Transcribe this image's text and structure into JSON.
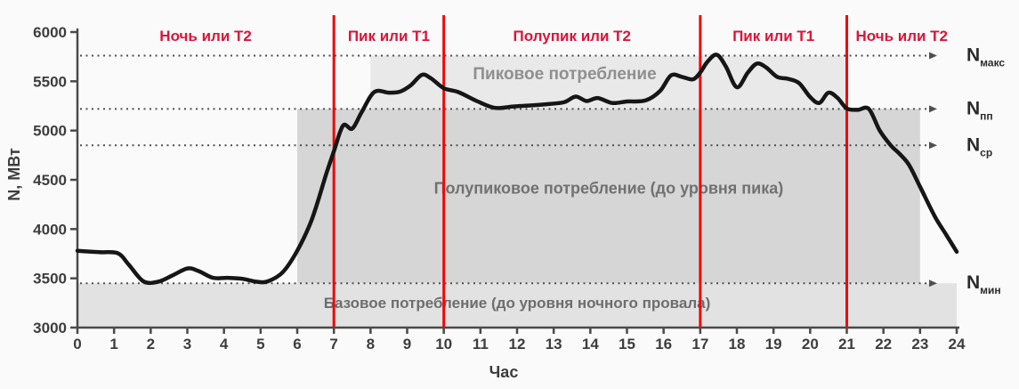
{
  "chart_data": {
    "type": "line",
    "title": "",
    "xlabel": "Час",
    "ylabel": "N, МВт",
    "xlim": [
      0,
      24
    ],
    "ylim": [
      3000,
      6000
    ],
    "x_ticks": [
      0,
      1,
      2,
      3,
      4,
      5,
      6,
      7,
      8,
      9,
      10,
      11,
      12,
      13,
      14,
      15,
      16,
      17,
      18,
      19,
      20,
      21,
      22,
      23,
      24
    ],
    "y_ticks": [
      3000,
      3500,
      4000,
      4500,
      5000,
      5500,
      6000
    ],
    "grid": false,
    "series": [
      {
        "name": "daily-load-curve",
        "points": [
          [
            0,
            3780
          ],
          [
            0.6,
            3765
          ],
          [
            1.1,
            3755
          ],
          [
            1.4,
            3640
          ],
          [
            1.8,
            3470
          ],
          [
            2.2,
            3465
          ],
          [
            2.6,
            3530
          ],
          [
            3.0,
            3600
          ],
          [
            3.3,
            3575
          ],
          [
            3.7,
            3505
          ],
          [
            4.1,
            3505
          ],
          [
            4.5,
            3495
          ],
          [
            4.9,
            3465
          ],
          [
            5.2,
            3470
          ],
          [
            5.6,
            3560
          ],
          [
            6.0,
            3780
          ],
          [
            6.4,
            4100
          ],
          [
            6.8,
            4570
          ],
          [
            7.0,
            4790
          ],
          [
            7.25,
            5050
          ],
          [
            7.5,
            5020
          ],
          [
            7.75,
            5180
          ],
          [
            8.1,
            5390
          ],
          [
            8.5,
            5385
          ],
          [
            8.8,
            5395
          ],
          [
            9.1,
            5460
          ],
          [
            9.4,
            5565
          ],
          [
            9.65,
            5530
          ],
          [
            10.0,
            5430
          ],
          [
            10.4,
            5390
          ],
          [
            10.9,
            5300
          ],
          [
            11.4,
            5230
          ],
          [
            11.9,
            5245
          ],
          [
            12.4,
            5255
          ],
          [
            12.9,
            5270
          ],
          [
            13.3,
            5290
          ],
          [
            13.6,
            5345
          ],
          [
            13.9,
            5300
          ],
          [
            14.2,
            5330
          ],
          [
            14.6,
            5280
          ],
          [
            15.0,
            5295
          ],
          [
            15.5,
            5305
          ],
          [
            15.9,
            5400
          ],
          [
            16.2,
            5560
          ],
          [
            16.5,
            5545
          ],
          [
            16.8,
            5520
          ],
          [
            17.0,
            5590
          ],
          [
            17.2,
            5700
          ],
          [
            17.45,
            5770
          ],
          [
            17.7,
            5650
          ],
          [
            18.0,
            5440
          ],
          [
            18.3,
            5590
          ],
          [
            18.55,
            5680
          ],
          [
            18.8,
            5640
          ],
          [
            19.1,
            5545
          ],
          [
            19.4,
            5525
          ],
          [
            19.7,
            5480
          ],
          [
            20.0,
            5340
          ],
          [
            20.25,
            5280
          ],
          [
            20.5,
            5385
          ],
          [
            20.75,
            5330
          ],
          [
            21.0,
            5225
          ],
          [
            21.3,
            5210
          ],
          [
            21.6,
            5220
          ],
          [
            21.9,
            5000
          ],
          [
            22.2,
            4850
          ],
          [
            22.45,
            4760
          ],
          [
            22.7,
            4650
          ],
          [
            23.0,
            4430
          ],
          [
            23.4,
            4130
          ],
          [
            23.7,
            3950
          ],
          [
            24.0,
            3770
          ]
        ]
      }
    ],
    "reference_levels": [
      {
        "label": "N",
        "sub": "макс",
        "value": 5760
      },
      {
        "label": "N",
        "sub": "пп",
        "value": 5220
      },
      {
        "label": "N",
        "sub": "ср",
        "value": 4850
      },
      {
        "label": "N",
        "sub": "мин",
        "value": 3450
      }
    ],
    "zone_boundaries": [
      7,
      10,
      17,
      21
    ],
    "zones": [
      {
        "label": "Ночь или Т2",
        "from": 0,
        "to": 7
      },
      {
        "label": "Пик или Т1",
        "from": 7,
        "to": 10
      },
      {
        "label": "Полупик или Т2",
        "from": 10,
        "to": 17
      },
      {
        "label": "Пик или Т1",
        "from": 17,
        "to": 21
      },
      {
        "label": "Ночь или Т2",
        "from": 21,
        "to": 24
      }
    ],
    "regions": [
      {
        "name": "peak-consumption-region",
        "label": "Пиковое потребление",
        "x": [
          8,
          21
        ],
        "y": [
          5220,
          5760
        ],
        "fill": "#e9e9e9",
        "label_pos": [
          13.3,
          5520
        ],
        "label_color": "#8f8f8f",
        "label_size": 19
      },
      {
        "name": "semipeak-consumption-region",
        "label": "Полупиковое потребление (до уровня пика)",
        "x": [
          6,
          23
        ],
        "y": [
          3450,
          5220
        ],
        "fill": "#d6d6d6",
        "label_pos": [
          14.5,
          4360
        ],
        "label_color": "#717171",
        "label_size": 18
      },
      {
        "name": "base-consumption-region",
        "label": "Базовое потребление (до уровня ночного провала)",
        "x": [
          0,
          24
        ],
        "y": [
          3000,
          3450
        ],
        "fill": "#e2e2e2",
        "label_pos": [
          12.0,
          3200
        ],
        "label_color": "#6d6d6d",
        "label_size": 17
      }
    ],
    "legend": null
  },
  "colors": {
    "background": "#fafafa",
    "curve": "#161616",
    "axis": "#4a4a4a",
    "tick_text": "#3d3d3d",
    "dotted_line": "#4f4f4f",
    "ref_label": "#2b2b2b",
    "zone_separator": "#ee0808",
    "zone_label": "#dc1438"
  }
}
